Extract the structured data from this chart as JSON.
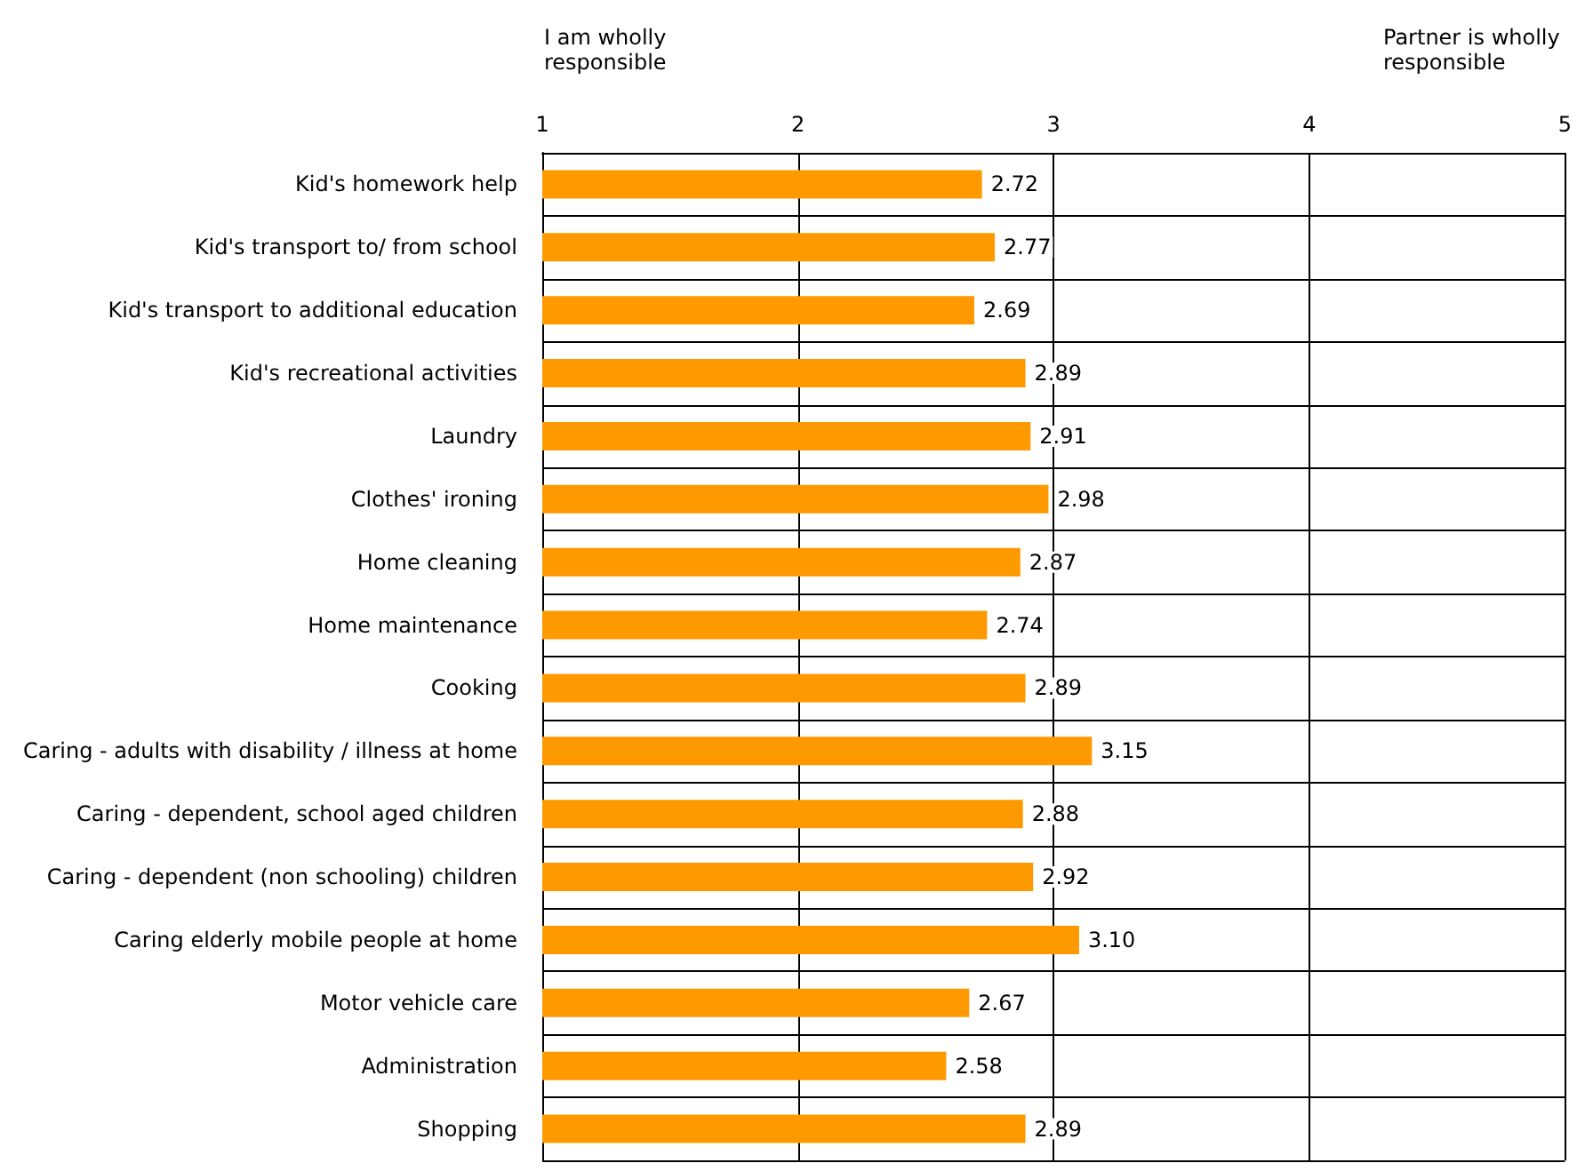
{
  "chart_data": {
    "type": "bar",
    "orientation": "horizontal",
    "categories": [
      "Kid's homework help",
      "Kid's transport to/ from school",
      "Kid's transport to additional education",
      "Kid's recreational activities",
      "Laundry",
      "Clothes' ironing",
      "Home cleaning",
      "Home maintenance",
      "Cooking",
      "Caring - adults with disability / illness at home",
      "Caring - dependent, school aged children",
      "Caring - dependent (non schooling) children",
      "Caring elderly mobile people at home",
      "Motor vehicle care",
      "Administration",
      "Shopping"
    ],
    "values": [
      2.72,
      2.77,
      2.69,
      2.89,
      2.91,
      2.98,
      2.87,
      2.74,
      2.89,
      3.15,
      2.88,
      2.92,
      3.1,
      2.67,
      2.58,
      2.89
    ],
    "value_labels": [
      "2.72",
      "2.77",
      "2.69",
      "2.89",
      "2.91",
      "2.98",
      "2.87",
      "2.74",
      "2.89",
      "3.15",
      "2.88",
      "2.92",
      "3.10",
      "2.67",
      "2.58",
      "2.89"
    ],
    "color": "#ff9900",
    "xlim": [
      1,
      5
    ],
    "xticks": [
      1,
      2,
      3,
      4,
      5
    ],
    "grid": true,
    "annotations": [
      "I am wholly responsible",
      "Partner is wholly responsible"
    ]
  }
}
